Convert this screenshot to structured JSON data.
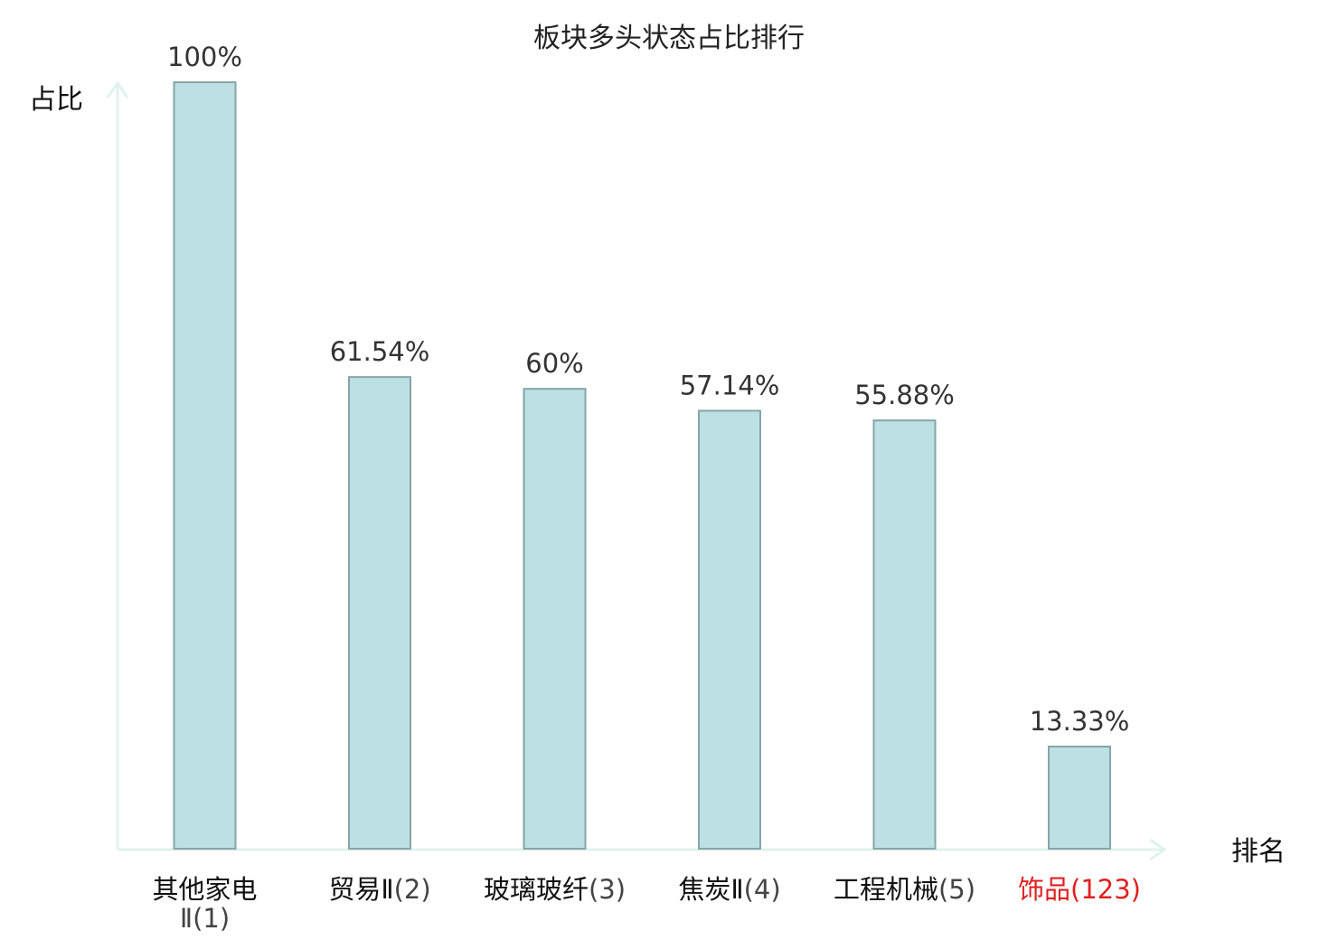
{
  "chart_data": {
    "type": "bar",
    "title": "板块多头状态占比排行",
    "ylabel": "占比",
    "xlabel": "排名",
    "ylim": [
      0,
      100
    ],
    "grid": false,
    "categories": [
      {
        "name": "其他家电",
        "name2": "Ⅱ",
        "rank": "(1)",
        "highlight": false
      },
      {
        "name": "贸易Ⅱ",
        "name2": "",
        "rank": "(2)",
        "highlight": false
      },
      {
        "name": "玻璃玻纤",
        "name2": "",
        "rank": "(3)",
        "highlight": false
      },
      {
        "name": "焦炭Ⅱ",
        "name2": "",
        "rank": "(4)",
        "highlight": false
      },
      {
        "name": "工程机械",
        "name2": "",
        "rank": "(5)",
        "highlight": false
      },
      {
        "name": "饰品",
        "name2": "",
        "rank": "(123)",
        "highlight": true
      }
    ],
    "values": [
      100,
      61.54,
      60,
      57.14,
      55.88,
      13.33
    ],
    "value_labels": [
      "100%",
      "61.54%",
      "60%",
      "57.14%",
      "55.88%",
      "13.33%"
    ],
    "colors": {
      "bar_fill": "#bce0e3",
      "bar_stroke": "#86a5a8",
      "axis": "#e0f2ef",
      "category_text": "#111111",
      "rank_text": "#444444",
      "highlight_text": "#e02020"
    }
  }
}
